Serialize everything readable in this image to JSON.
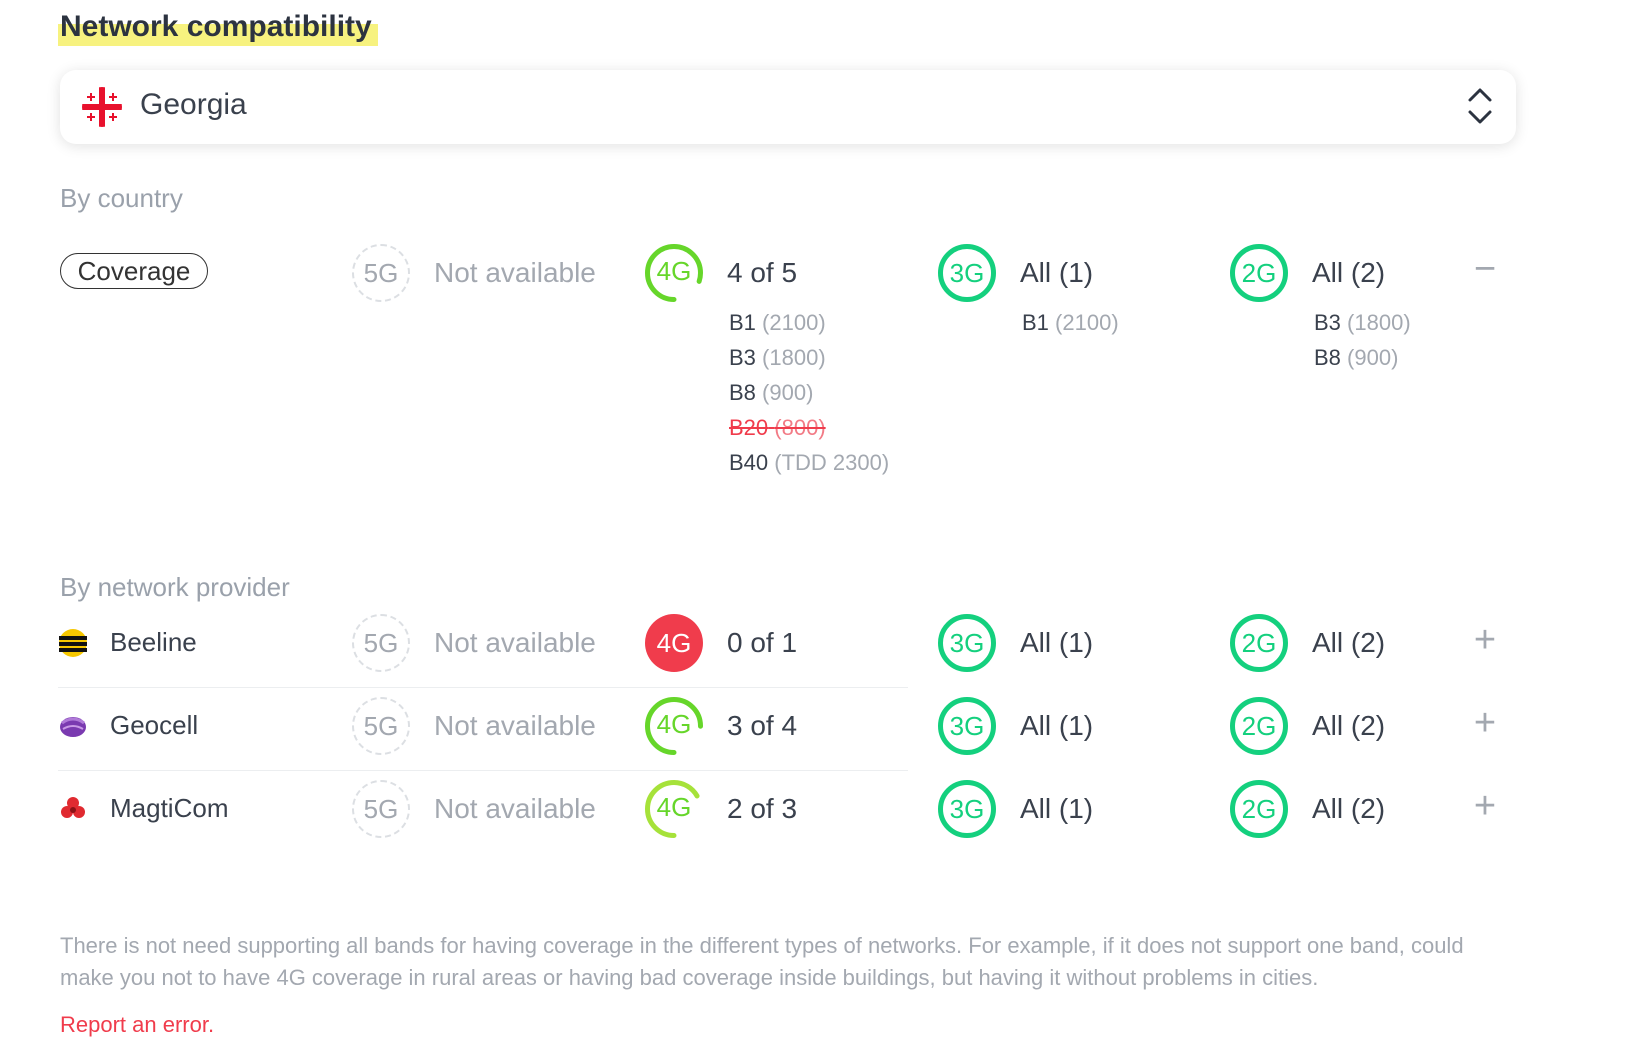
{
  "title": "Network compatibility",
  "country": {
    "name": "Georgia",
    "flag_icon": "georgia-flag-icon"
  },
  "by_country_label": "By country",
  "coverage_label": "Coverage",
  "country_row": {
    "g5": {
      "label": "5G",
      "status": "Not available"
    },
    "g4": {
      "label": "4G",
      "status": "4 of 5",
      "fraction": 0.8,
      "bands": [
        {
          "band": "B1",
          "freq": "(2100)",
          "supported": true
        },
        {
          "band": "B3",
          "freq": "(1800)",
          "supported": true
        },
        {
          "band": "B8",
          "freq": "(900)",
          "supported": true
        },
        {
          "band": "B20",
          "freq": "(800)",
          "supported": false
        },
        {
          "band": "B40",
          "freq": "(TDD 2300)",
          "supported": true
        }
      ]
    },
    "g3": {
      "label": "3G",
      "status": "All (1)",
      "bands": [
        {
          "band": "B1",
          "freq": "(2100)",
          "supported": true
        }
      ]
    },
    "g2": {
      "label": "2G",
      "status": "All (2)",
      "bands": [
        {
          "band": "B3",
          "freq": "(1800)",
          "supported": true
        },
        {
          "band": "B8",
          "freq": "(900)",
          "supported": true
        }
      ]
    },
    "toggle": "−"
  },
  "by_provider_label": "By network provider",
  "providers": [
    {
      "name": "Beeline",
      "g5": "5G",
      "g5_status": "Not available",
      "g4": "4G",
      "g4_status": "0 of 1",
      "g4_fraction": 0,
      "g3": "3G",
      "g3_status": "All (1)",
      "g2": "2G",
      "g2_status": "All (2)",
      "toggle": "+"
    },
    {
      "name": "Geocell",
      "g5": "5G",
      "g5_status": "Not available",
      "g4": "4G",
      "g4_status": "3 of 4",
      "g4_fraction": 0.75,
      "g3": "3G",
      "g3_status": "All (1)",
      "g2": "2G",
      "g2_status": "All (2)",
      "toggle": "+"
    },
    {
      "name": "MagtiCom",
      "g5": "5G",
      "g5_status": "Not available",
      "g4": "4G",
      "g4_status": "2 of 3",
      "g4_fraction": 0.667,
      "g3": "3G",
      "g3_status": "All (1)",
      "g2": "2G",
      "g2_status": "All (2)",
      "toggle": "+"
    }
  ],
  "note": "There is not need supporting all bands for having coverage in the different types of networks. For example, if it does not support one band, could make you not to have 4G coverage in rural areas or having bad coverage inside buildings, but having it without problems in cities.",
  "report_link": "Report an error.",
  "colors": {
    "full": "#14d07e",
    "partial": "#66d62a",
    "red": "#f03c4c",
    "muted": "#a3a8b0"
  }
}
